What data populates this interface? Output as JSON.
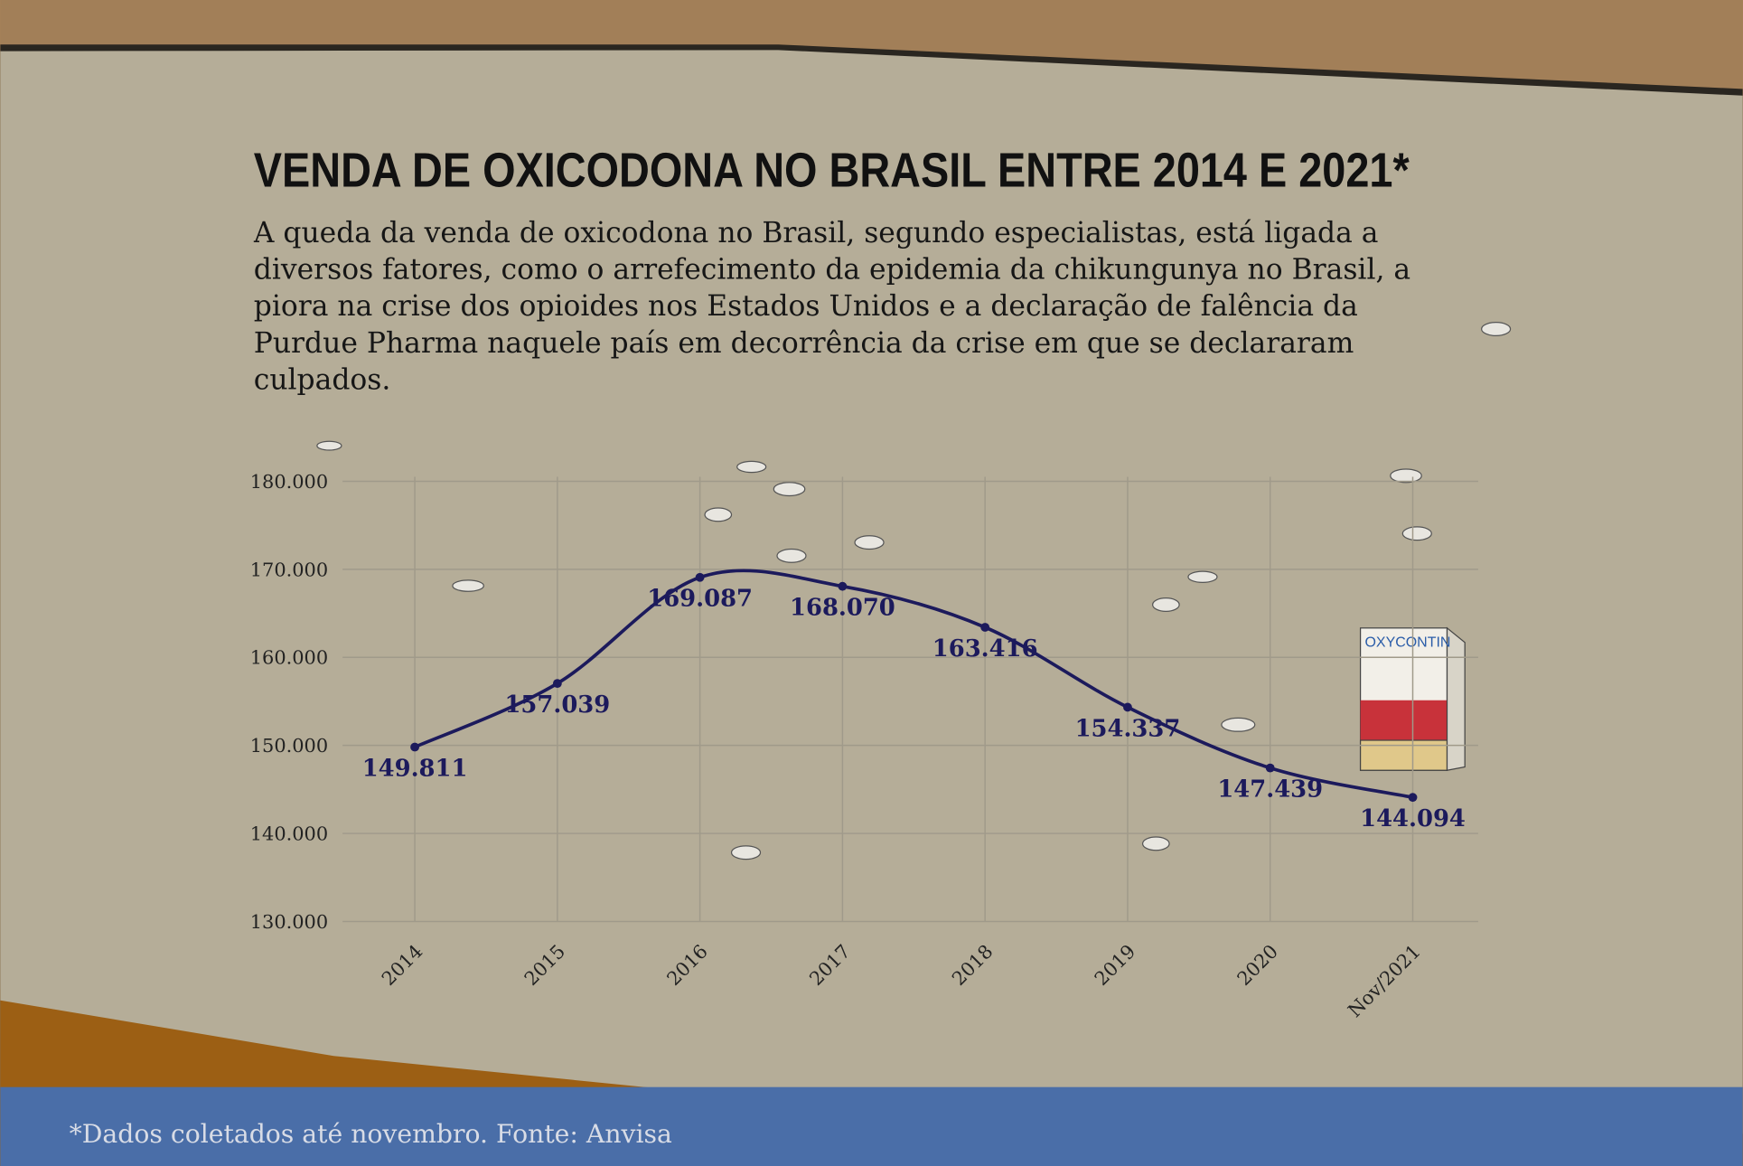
{
  "chart_data": {
    "type": "line",
    "title": "VENDA DE OXICODONA NO BRASIL ENTRE 2014 E 2021*",
    "subtitle": "A queda da venda de oxicodona no Brasil, segundo especialistas, está ligada a diversos fatores, como o arrefecimento da epidemia da chikungunya no Brasil, a piora na crise dos opioides nos Estados Unidos e a declaração de falência da Purdue Pharma naquele país em decorrência da crise em que se declararam culpados.",
    "footnote": "*Dados coletados até novembro. Fonte: Anvisa",
    "illustration_label": "OXYCONTIN",
    "categories": [
      "2014",
      "2015",
      "2016",
      "2017",
      "2018",
      "2019",
      "2020",
      "Nov/2021"
    ],
    "values": [
      149811,
      157039,
      169087,
      168070,
      163416,
      154337,
      147439,
      144094
    ],
    "value_labels": [
      "149.811",
      "157.039",
      "169.087",
      "168.070",
      "163.416",
      "154.337",
      "147.439",
      "144.094"
    ],
    "color": "#1c1a5c",
    "ylim": [
      130000,
      180000
    ],
    "yticks": [
      {
        "value": 130000,
        "label": "130.000"
      },
      {
        "value": 140000,
        "label": "140.000"
      },
      {
        "value": 150000,
        "label": "150.000"
      },
      {
        "value": 160000,
        "label": "160.000"
      },
      {
        "value": 170000,
        "label": "170.000"
      },
      {
        "value": 180000,
        "label": "180.000"
      }
    ],
    "grid": true
  }
}
